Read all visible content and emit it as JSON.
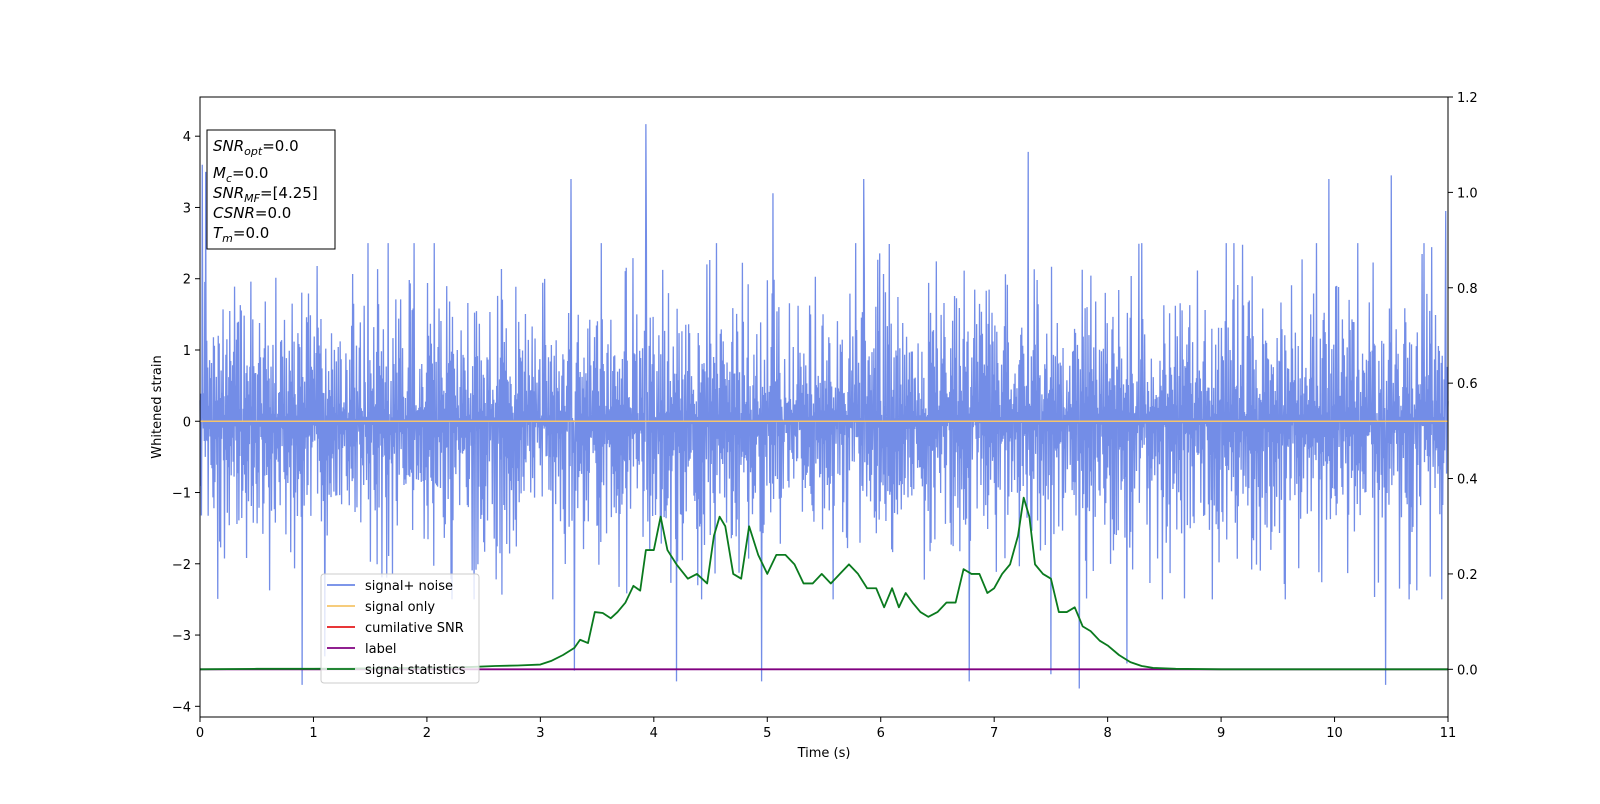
{
  "chart_data": {
    "type": "line",
    "xlabel": "Time (s)",
    "ylabel": "Whitened strain",
    "xlim": [
      0,
      11
    ],
    "ylim_left": [
      -4.15,
      4.55
    ],
    "ylim_right": [
      -0.1,
      1.2
    ],
    "x_ticks": [
      "0",
      "1",
      "2",
      "3",
      "4",
      "5",
      "6",
      "7",
      "8",
      "9",
      "10",
      "11"
    ],
    "y_ticks_left": [
      "−4",
      "−3",
      "−2",
      "−1",
      "0",
      "1",
      "2",
      "3",
      "4"
    ],
    "y_ticks_right": [
      "0.0",
      "0.2",
      "0.4",
      "0.6",
      "0.8",
      "1.0",
      "1.2"
    ],
    "grid": false,
    "legend_position": "lower-left",
    "series": [
      {
        "name": "signal+ noise",
        "axis": "left",
        "color": "#6b87e6",
        "style": "dense noise",
        "envelope": {
          "typical_max": 1.9,
          "typical_min": -1.9,
          "peak_max": 4.17,
          "peak_min": -3.75
        },
        "spikes": [
          [
            0.02,
            3.6
          ],
          [
            0.05,
            3.5
          ],
          [
            0.9,
            -3.7
          ],
          [
            1.1,
            -3.3
          ],
          [
            3.27,
            3.4
          ],
          [
            3.3,
            -3.5
          ],
          [
            3.93,
            4.17
          ],
          [
            4.2,
            -3.65
          ],
          [
            4.95,
            -3.65
          ],
          [
            5.05,
            3.2
          ],
          [
            5.85,
            3.4
          ],
          [
            6.78,
            -3.65
          ],
          [
            7.3,
            3.78
          ],
          [
            7.5,
            -3.55
          ],
          [
            7.75,
            -3.75
          ],
          [
            8.17,
            -3.4
          ],
          [
            9.95,
            3.4
          ],
          [
            10.45,
            -3.7
          ],
          [
            10.5,
            3.45
          ],
          [
            10.98,
            2.95
          ]
        ]
      },
      {
        "name": "signal only",
        "axis": "left",
        "color": "#f5c46a",
        "x": [
          0,
          11
        ],
        "y": [
          0,
          0
        ]
      },
      {
        "name": "cumilative SNR",
        "axis": "right",
        "color": "#e41a1c",
        "x": [],
        "y": []
      },
      {
        "name": "label",
        "axis": "right",
        "color": "#800080",
        "x": [
          0,
          11
        ],
        "y": [
          0,
          0
        ]
      },
      {
        "name": "signal statistics",
        "axis": "right",
        "color": "#0a7a1e",
        "x": [
          0,
          0.5,
          1.0,
          1.5,
          2.0,
          2.4,
          2.6,
          2.8,
          3.0,
          3.1,
          3.2,
          3.3,
          3.35,
          3.42,
          3.48,
          3.55,
          3.62,
          3.68,
          3.75,
          3.82,
          3.88,
          3.93,
          4.0,
          4.06,
          4.12,
          4.2,
          4.3,
          4.38,
          4.47,
          4.53,
          4.58,
          4.63,
          4.7,
          4.77,
          4.84,
          4.92,
          5.0,
          5.08,
          5.16,
          5.24,
          5.32,
          5.4,
          5.48,
          5.56,
          5.64,
          5.72,
          5.8,
          5.88,
          5.96,
          6.03,
          6.1,
          6.16,
          6.22,
          6.28,
          6.35,
          6.42,
          6.5,
          6.58,
          6.66,
          6.73,
          6.8,
          6.87,
          6.94,
          7.0,
          7.07,
          7.14,
          7.21,
          7.26,
          7.31,
          7.36,
          7.43,
          7.5,
          7.57,
          7.64,
          7.71,
          7.78,
          7.85,
          7.93,
          8.0,
          8.1,
          8.2,
          8.3,
          8.4,
          8.6,
          9.0,
          9.5,
          10.0,
          10.5,
          11.0
        ],
        "y": [
          0.0,
          0.001,
          0.001,
          0.002,
          0.003,
          0.005,
          0.007,
          0.008,
          0.01,
          0.018,
          0.03,
          0.045,
          0.062,
          0.055,
          0.12,
          0.118,
          0.107,
          0.12,
          0.14,
          0.175,
          0.165,
          0.25,
          0.25,
          0.32,
          0.25,
          0.22,
          0.19,
          0.2,
          0.18,
          0.28,
          0.32,
          0.3,
          0.2,
          0.19,
          0.3,
          0.24,
          0.2,
          0.24,
          0.24,
          0.22,
          0.18,
          0.18,
          0.2,
          0.18,
          0.2,
          0.22,
          0.2,
          0.17,
          0.17,
          0.13,
          0.17,
          0.13,
          0.16,
          0.14,
          0.12,
          0.11,
          0.12,
          0.14,
          0.14,
          0.21,
          0.2,
          0.2,
          0.16,
          0.17,
          0.2,
          0.22,
          0.28,
          0.36,
          0.32,
          0.22,
          0.2,
          0.19,
          0.12,
          0.12,
          0.13,
          0.09,
          0.08,
          0.06,
          0.05,
          0.03,
          0.015,
          0.007,
          0.003,
          0.001,
          0.0,
          0.0,
          0.0,
          0.0,
          0.0
        ]
      }
    ],
    "annotation": {
      "lines": [
        {
          "main": "SNR",
          "sub": "opt",
          "value": "=0.0"
        },
        {
          "main": "M",
          "sub": "c",
          "value": "=0.0"
        },
        {
          "main": "SNR",
          "sub": "MF",
          "value": "=[4.25]"
        },
        {
          "main": "CSNR",
          "sub": "",
          "value": "=0.0"
        },
        {
          "main": "T",
          "sub": "m",
          "value": "=0.0"
        }
      ]
    }
  }
}
